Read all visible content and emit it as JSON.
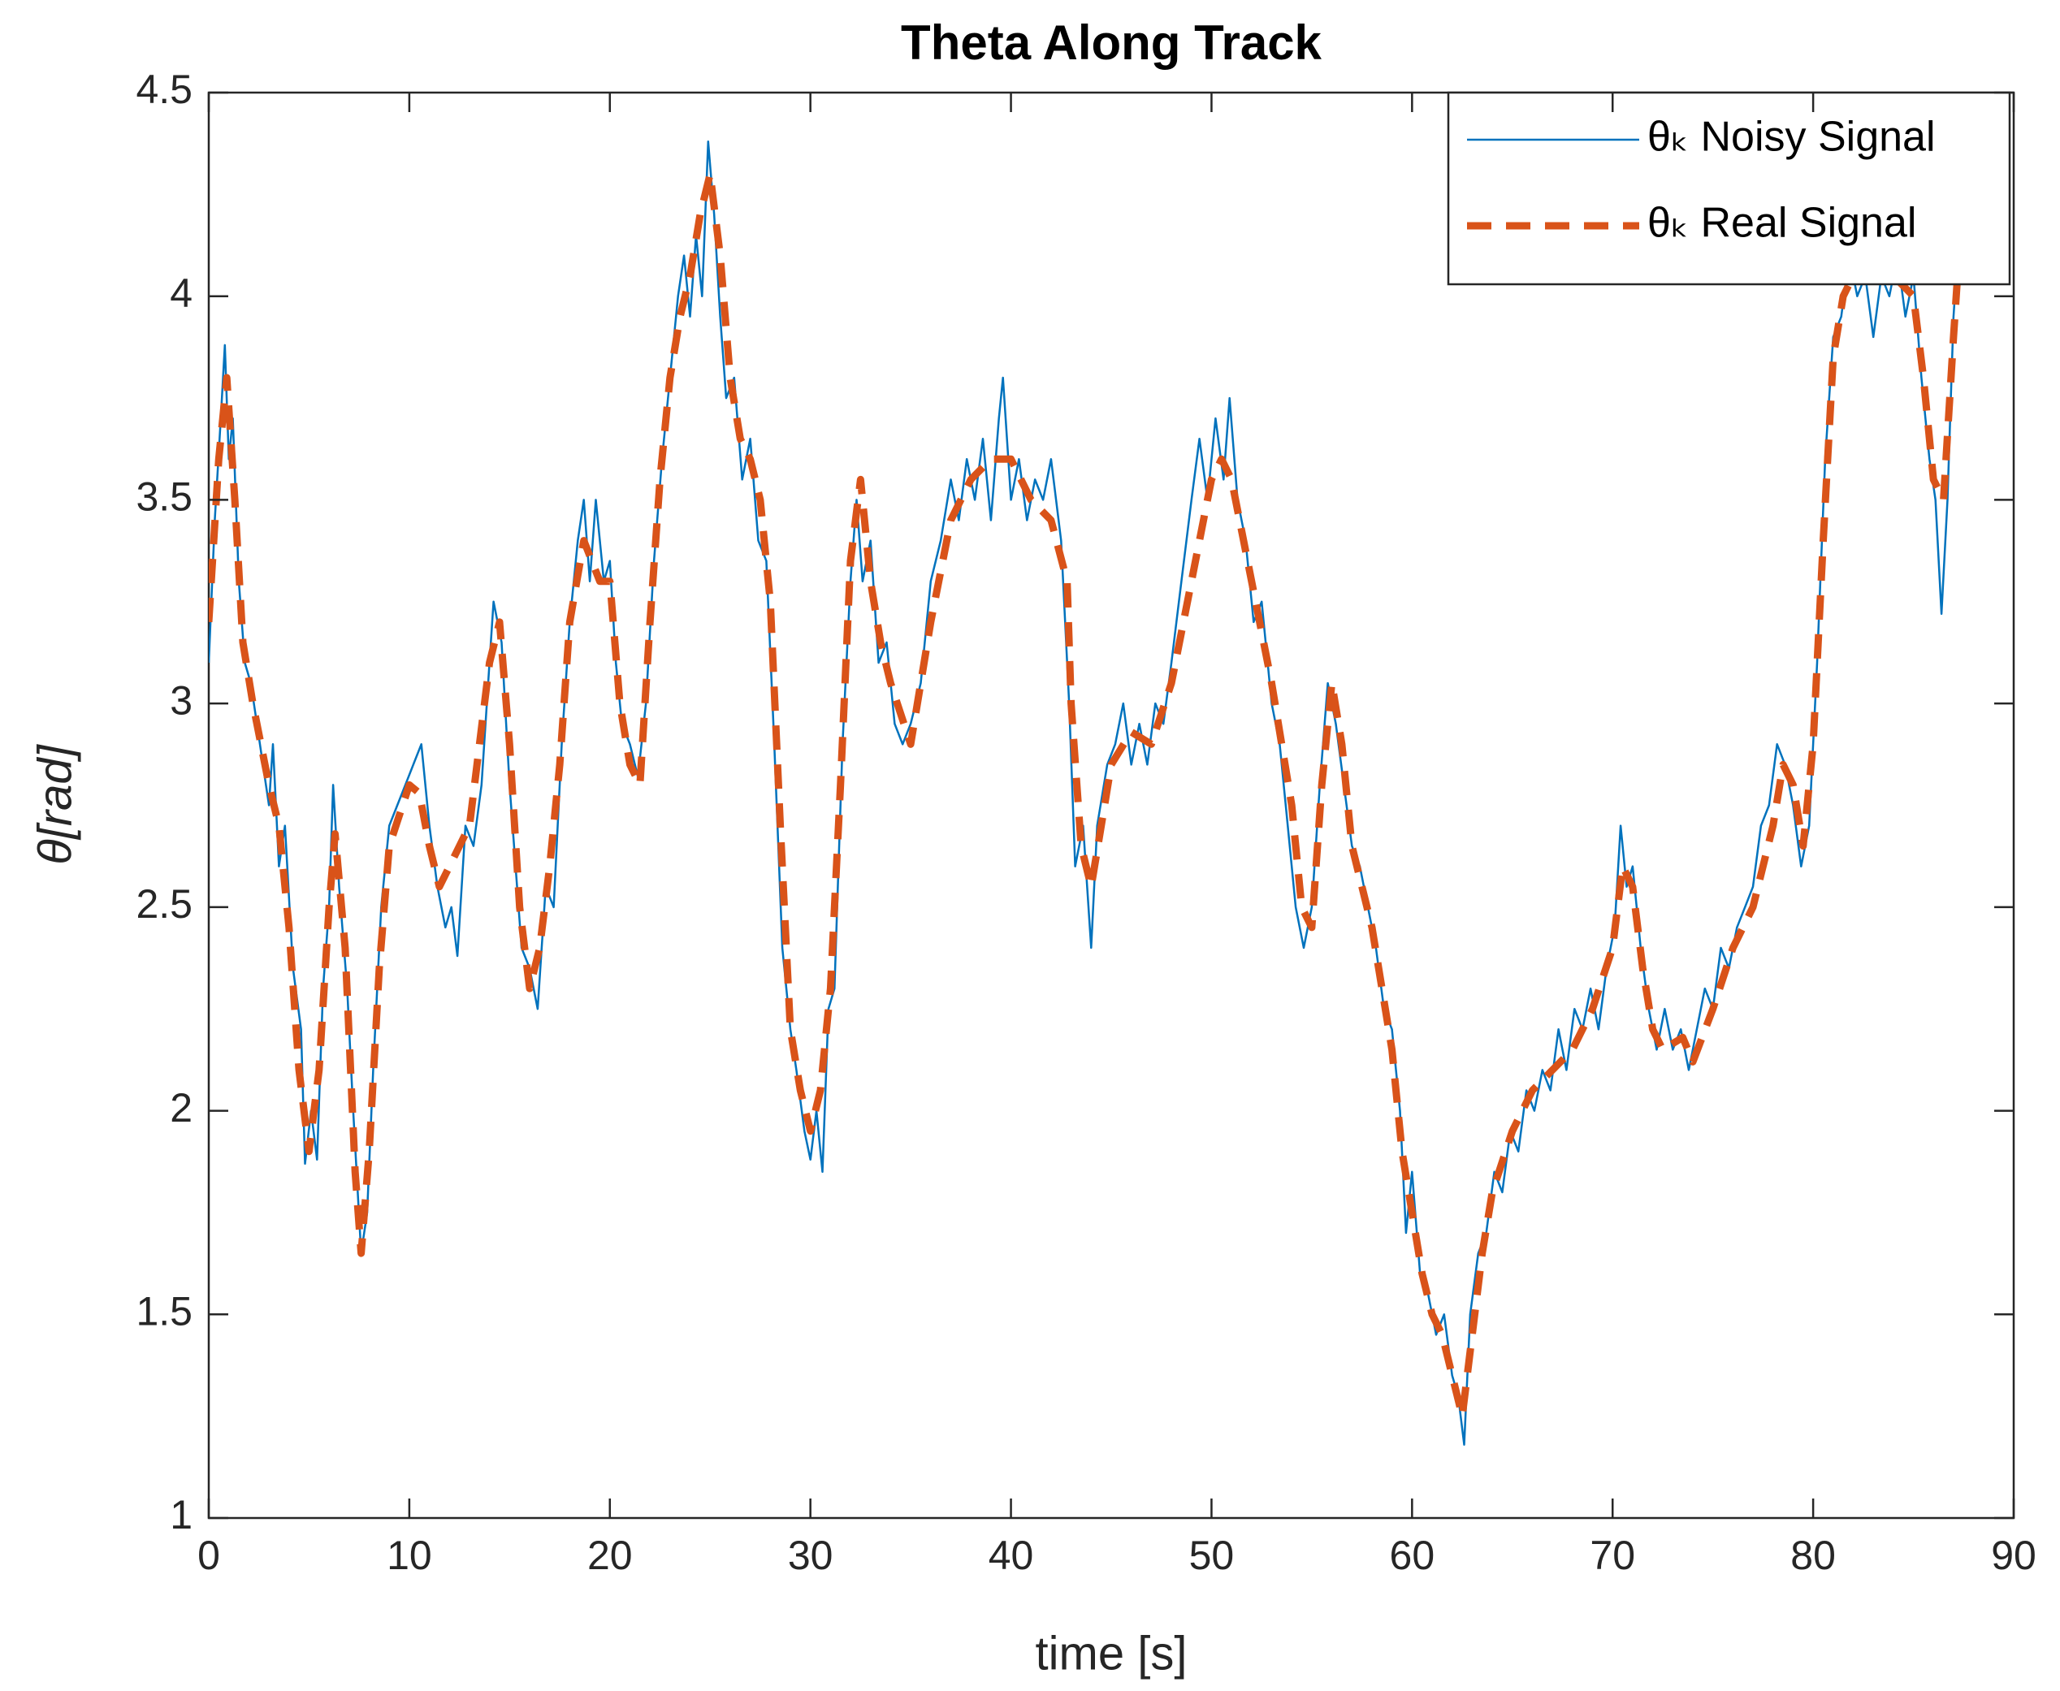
{
  "chart_data": {
    "type": "line",
    "title": "Theta Along Track",
    "x_label": "time [s]",
    "y_label": "θ[rad]",
    "xlim": [
      0,
      90
    ],
    "xticks": [
      0,
      10,
      20,
      30,
      40,
      50,
      60,
      70,
      80,
      90
    ],
    "ylim": [
      1,
      4.5
    ],
    "yticks": [
      1,
      1.5,
      2,
      2.5,
      3,
      3.5,
      4,
      4.5
    ],
    "grid": false,
    "legend_position": "upper-right",
    "series": [
      {
        "name": "θₖ Noisy Signal",
        "color": "#0072BD",
        "style": "solid",
        "x": [
          0,
          0.3,
          0.6,
          0.8,
          1.0,
          1.2,
          1.5,
          1.8,
          2.1,
          2.4,
          2.7,
          3,
          3.2,
          3.5,
          3.8,
          4.2,
          4.6,
          4.8,
          5.1,
          5.4,
          5.7,
          6,
          6.2,
          6.5,
          6.9,
          7.2,
          7.6,
          7.9,
          8.2,
          8.6,
          9,
          9.4,
          9.8,
          10.2,
          10.6,
          11,
          11.4,
          11.8,
          12.1,
          12.4,
          12.8,
          13.2,
          13.6,
          14,
          14.2,
          14.6,
          15,
          15.3,
          15.6,
          16,
          16.4,
          16.8,
          17.2,
          17.6,
          18,
          18.4,
          18.7,
          19,
          19.3,
          19.7,
          20,
          20.3,
          20.6,
          21,
          21.4,
          21.8,
          22.2,
          22.6,
          23,
          23.4,
          23.7,
          24,
          24.3,
          24.6,
          24.9,
          25.2,
          25.5,
          25.8,
          26.2,
          26.6,
          27,
          27.4,
          27.8,
          28.2,
          28.6,
          29,
          29.3,
          29.7,
          30,
          30.3,
          30.6,
          30.9,
          31.2,
          31.6,
          32,
          32.3,
          32.6,
          33,
          33.4,
          33.8,
          34.2,
          34.6,
          35,
          35.5,
          36,
          36.5,
          37,
          37.4,
          37.8,
          38.2,
          38.6,
          39,
          39.4,
          39.6,
          40,
          40.4,
          40.8,
          41.2,
          41.6,
          42,
          42.5,
          42.9,
          43.2,
          43.6,
          44,
          44.3,
          44.8,
          45.2,
          45.6,
          46,
          46.4,
          46.8,
          47.2,
          47.6,
          48,
          48.5,
          49,
          49.4,
          49.8,
          50.2,
          50.6,
          50.9,
          51.3,
          51.7,
          52.1,
          52.5,
          53,
          53.4,
          53.8,
          54.2,
          54.6,
          55,
          55.4,
          55.8,
          56.2,
          56.6,
          57,
          57.4,
          57.8,
          58.2,
          58.6,
          59,
          59.4,
          59.7,
          60,
          60.4,
          60.8,
          61.2,
          61.6,
          62,
          62.3,
          62.6,
          62.9,
          63.3,
          63.7,
          64.1,
          64.5,
          64.9,
          65.3,
          65.7,
          66.1,
          66.5,
          66.9,
          67.3,
          67.7,
          68.1,
          68.5,
          68.9,
          69.3,
          69.7,
          70.1,
          70.4,
          70.7,
          71,
          71.4,
          71.8,
          72.2,
          72.6,
          73,
          73.4,
          73.8,
          74.2,
          74.6,
          75,
          75.4,
          75.8,
          76.2,
          76.6,
          77,
          77.4,
          77.8,
          78.2,
          78.6,
          79,
          79.4,
          79.8,
          80.2,
          80.6,
          81,
          81.4,
          81.8,
          82.2,
          82.6,
          83,
          83.4,
          83.8,
          84.2,
          84.6,
          85,
          85.4,
          85.8,
          86.1,
          86.4,
          86.7,
          87,
          87.2
        ],
        "values": [
          3.1,
          3.45,
          3.7,
          3.88,
          3.6,
          3.7,
          3.3,
          3.1,
          3.05,
          2.95,
          2.85,
          2.75,
          2.9,
          2.6,
          2.7,
          2.35,
          2.2,
          1.87,
          2.0,
          1.88,
          2.3,
          2.5,
          2.8,
          2.55,
          2.3,
          2.0,
          1.65,
          1.75,
          2.1,
          2.5,
          2.7,
          2.75,
          2.8,
          2.85,
          2.9,
          2.7,
          2.55,
          2.45,
          2.5,
          2.38,
          2.7,
          2.65,
          2.8,
          3.1,
          3.25,
          3.15,
          2.8,
          2.6,
          2.4,
          2.35,
          2.25,
          2.55,
          2.5,
          2.9,
          3.2,
          3.4,
          3.5,
          3.3,
          3.5,
          3.3,
          3.35,
          3.1,
          2.95,
          2.9,
          2.82,
          3.0,
          3.35,
          3.6,
          3.8,
          4.0,
          4.1,
          3.95,
          4.15,
          4.0,
          4.38,
          4.2,
          3.95,
          3.75,
          3.8,
          3.55,
          3.65,
          3.4,
          3.35,
          2.9,
          2.4,
          2.2,
          2.1,
          1.95,
          1.88,
          2.0,
          1.85,
          2.25,
          2.3,
          2.9,
          3.3,
          3.5,
          3.3,
          3.4,
          3.1,
          3.15,
          2.95,
          2.9,
          2.95,
          3.05,
          3.3,
          3.4,
          3.55,
          3.45,
          3.6,
          3.5,
          3.65,
          3.45,
          3.7,
          3.8,
          3.5,
          3.6,
          3.45,
          3.55,
          3.5,
          3.6,
          3.4,
          3.0,
          2.6,
          2.7,
          2.4,
          2.7,
          2.85,
          2.9,
          3.0,
          2.85,
          2.95,
          2.85,
          3.0,
          2.95,
          3.1,
          3.3,
          3.5,
          3.65,
          3.5,
          3.7,
          3.55,
          3.75,
          3.5,
          3.4,
          3.2,
          3.25,
          3.0,
          2.9,
          2.7,
          2.5,
          2.4,
          2.5,
          2.8,
          3.05,
          2.95,
          2.8,
          2.65,
          2.6,
          2.5,
          2.4,
          2.25,
          2.2,
          2.0,
          1.7,
          1.85,
          1.6,
          1.55,
          1.45,
          1.5,
          1.35,
          1.3,
          1.18,
          1.5,
          1.65,
          1.7,
          1.85,
          1.8,
          1.95,
          1.9,
          2.05,
          2.0,
          2.1,
          2.05,
          2.2,
          2.1,
          2.25,
          2.2,
          2.3,
          2.2,
          2.35,
          2.45,
          2.7,
          2.55,
          2.6,
          2.4,
          2.25,
          2.15,
          2.25,
          2.15,
          2.2,
          2.1,
          2.2,
          2.3,
          2.25,
          2.4,
          2.35,
          2.45,
          2.5,
          2.55,
          2.7,
          2.75,
          2.9,
          2.85,
          2.75,
          2.6,
          2.7,
          3.1,
          3.6,
          3.9,
          3.95,
          4.1,
          4.0,
          4.05,
          3.9,
          4.05,
          4.0,
          4.1,
          3.95,
          4.05,
          3.8,
          3.6,
          3.5,
          3.22,
          3.5,
          3.95,
          4.1
        ]
      },
      {
        "name": "θₖ Real Signal",
        "color": "#D95319",
        "style": "dashed",
        "x": [
          0,
          0.5,
          0.9,
          1.3,
          1.7,
          2.2,
          3,
          3.5,
          4,
          4.5,
          5,
          5.5,
          6,
          6.3,
          6.8,
          7.3,
          7.6,
          8,
          8.5,
          9,
          10,
          10.5,
          11,
          11.5,
          12,
          13,
          13.5,
          14,
          14.5,
          15,
          15.5,
          16,
          16.5,
          17,
          17.5,
          18,
          18.7,
          19.5,
          20,
          20.5,
          21,
          21.5,
          22,
          22.5,
          23,
          23.5,
          24,
          24.5,
          25,
          25.5,
          26,
          26.5,
          27,
          27.5,
          28,
          28.5,
          29,
          29.5,
          30,
          30.5,
          31,
          31.5,
          32,
          32.5,
          33,
          33.5,
          34,
          35,
          35.5,
          36,
          37,
          38,
          39,
          40,
          41,
          42,
          42.8,
          43,
          43.5,
          44,
          44.5,
          45,
          46,
          47,
          48,
          49,
          50,
          50.5,
          51,
          52,
          53,
          54,
          54.5,
          55,
          55.5,
          56,
          56.5,
          57,
          58,
          59,
          59.5,
          60,
          60.5,
          61,
          61.5,
          62,
          62.5,
          63,
          63.5,
          64,
          65,
          66,
          67,
          68,
          69,
          70,
          70.5,
          71,
          71.5,
          72,
          72.5,
          73.5,
          74,
          75,
          76,
          77,
          78,
          78.5,
          79,
          79.5,
          80,
          80.5,
          81,
          81.5,
          82,
          83,
          84,
          85,
          85.5,
          86,
          86.5,
          87,
          87.2
        ],
        "values": [
          3.2,
          3.6,
          3.8,
          3.5,
          3.15,
          3.0,
          2.8,
          2.7,
          2.45,
          2.1,
          1.9,
          2.1,
          2.5,
          2.68,
          2.4,
          1.85,
          1.65,
          1.9,
          2.35,
          2.65,
          2.8,
          2.78,
          2.65,
          2.55,
          2.6,
          2.7,
          2.9,
          3.1,
          3.2,
          2.9,
          2.5,
          2.3,
          2.4,
          2.6,
          2.85,
          3.2,
          3.4,
          3.3,
          3.3,
          3.0,
          2.85,
          2.8,
          3.2,
          3.55,
          3.8,
          3.95,
          4.05,
          4.2,
          4.3,
          4.1,
          3.8,
          3.65,
          3.6,
          3.5,
          3.25,
          2.7,
          2.2,
          2.05,
          1.95,
          2.05,
          2.3,
          2.8,
          3.35,
          3.55,
          3.3,
          3.15,
          3.05,
          2.9,
          3.05,
          3.2,
          3.45,
          3.55,
          3.6,
          3.6,
          3.5,
          3.45,
          3.3,
          3.0,
          2.65,
          2.55,
          2.7,
          2.85,
          2.93,
          2.9,
          3.05,
          3.3,
          3.55,
          3.6,
          3.55,
          3.3,
          3.05,
          2.75,
          2.5,
          2.45,
          2.8,
          3.05,
          2.9,
          2.65,
          2.45,
          2.15,
          1.9,
          1.75,
          1.6,
          1.5,
          1.45,
          1.35,
          1.25,
          1.45,
          1.65,
          1.8,
          1.95,
          2.05,
          2.1,
          2.15,
          2.25,
          2.4,
          2.6,
          2.55,
          2.35,
          2.2,
          2.15,
          2.18,
          2.12,
          2.25,
          2.4,
          2.5,
          2.7,
          2.85,
          2.8,
          2.65,
          2.9,
          3.4,
          3.85,
          4.0,
          4.05,
          4.05,
          4.05,
          4.0,
          3.8,
          3.55,
          3.5,
          3.9,
          4.05
        ]
      }
    ]
  }
}
